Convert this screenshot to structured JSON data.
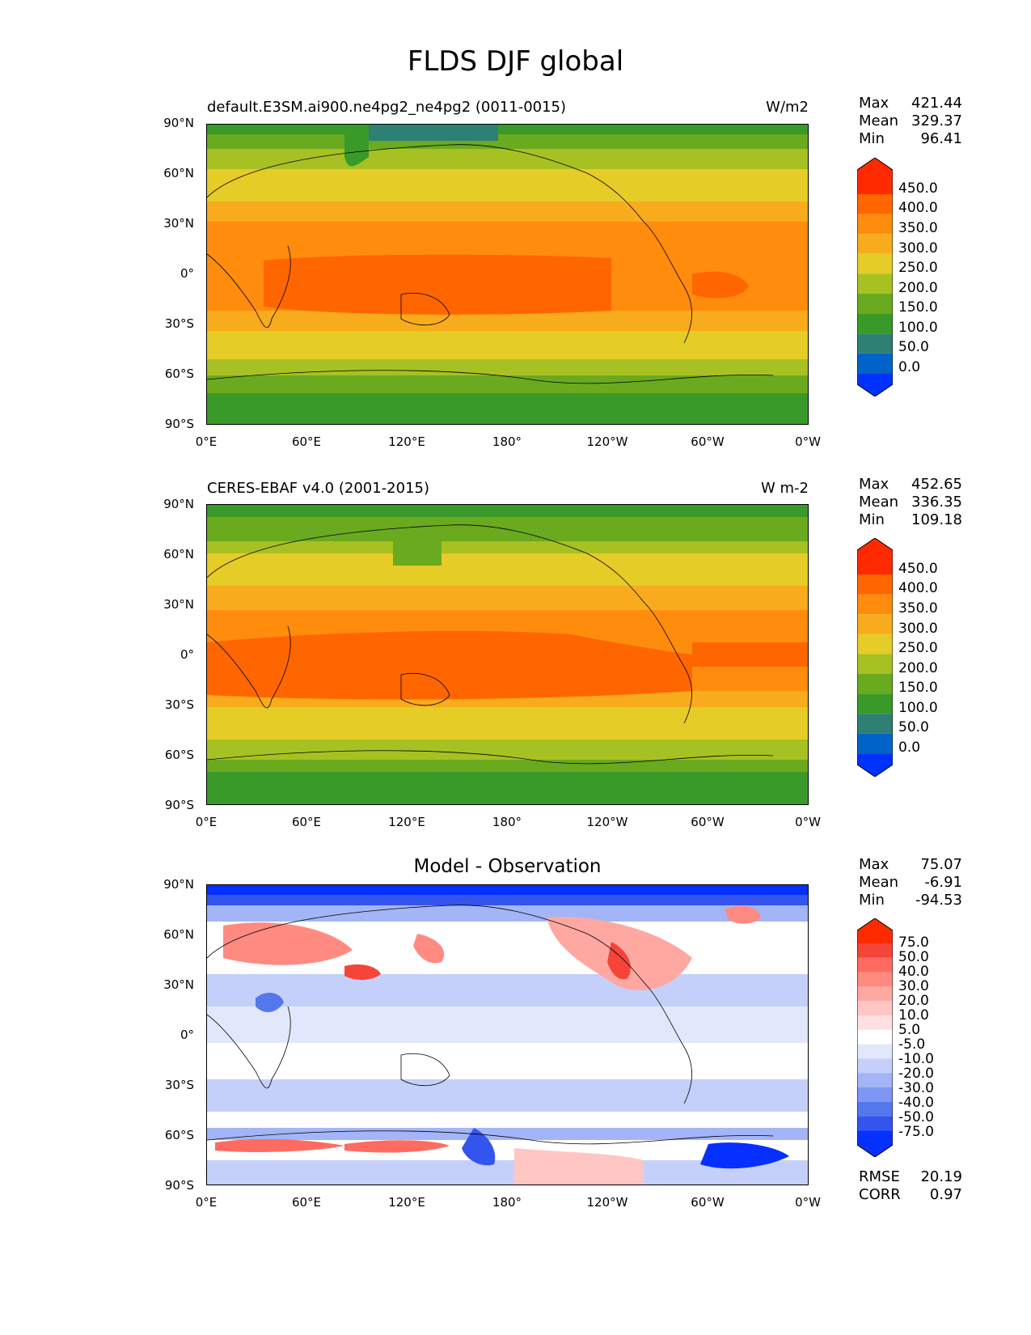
{
  "figure": {
    "title": "FLDS DJF global"
  },
  "axes": {
    "lat_ticks": [
      "90°N",
      "60°N",
      "30°N",
      "0°",
      "30°S",
      "60°S",
      "90°S"
    ],
    "lon_ticks": [
      "0°E",
      "60°E",
      "120°E",
      "180°",
      "120°W",
      "60°W",
      "0°W"
    ]
  },
  "colors": {
    "flux_palette": [
      "#0032ff",
      "#0063c8",
      "#2e7f74",
      "#3a9a29",
      "#6aaa1e",
      "#a7c122",
      "#e6cc26",
      "#f8ab1c",
      "#ff8c0d",
      "#ff6600",
      "#ff2a00"
    ],
    "diff_palette": [
      "#0530ff",
      "#3355ee",
      "#5577ee",
      "#7d97f2",
      "#a3b5f6",
      "#c4d0f9",
      "#e2e8fc",
      "#ffffff",
      "#ffe0e0",
      "#ffc6c3",
      "#ffa8a2",
      "#ff8a82",
      "#ff6b61",
      "#f5443a",
      "#ff2a00"
    ]
  },
  "panels": [
    {
      "left_title": "default.E3SM.ai900.ne4pg2_ne4pg2 (0011-0015)",
      "right_title": "W/m2",
      "stats": {
        "max_label": "Max",
        "max": "421.44",
        "mean_label": "Mean",
        "mean": "329.37",
        "min_label": "Min",
        "min": "96.41"
      },
      "levels": [
        "450.0",
        "400.0",
        "350.0",
        "300.0",
        "250.0",
        "200.0",
        "150.0",
        "100.0",
        "50.0",
        "0.0"
      ]
    },
    {
      "left_title": "CERES-EBAF v4.0 (2001-2015)",
      "right_title": "W m-2",
      "stats": {
        "max_label": "Max",
        "max": "452.65",
        "mean_label": "Mean",
        "mean": "336.35",
        "min_label": "Min",
        "min": "109.18"
      },
      "levels": [
        "450.0",
        "400.0",
        "350.0",
        "300.0",
        "250.0",
        "200.0",
        "150.0",
        "100.0",
        "50.0",
        "0.0"
      ]
    },
    {
      "center_title": "Model - Observation",
      "stats": {
        "max_label": "Max",
        "max": "75.07",
        "mean_label": "Mean",
        "mean": "-6.91",
        "min_label": "Min",
        "min": "-94.53"
      },
      "levels": [
        "75.0",
        "50.0",
        "40.0",
        "30.0",
        "20.0",
        "10.0",
        "5.0",
        "-5.0",
        "-10.0",
        "-20.0",
        "-30.0",
        "-40.0",
        "-50.0",
        "-75.0"
      ],
      "metrics": {
        "rmse_label": "RMSE",
        "rmse": "20.19",
        "corr_label": "CORR",
        "corr": "0.97"
      }
    }
  ]
}
